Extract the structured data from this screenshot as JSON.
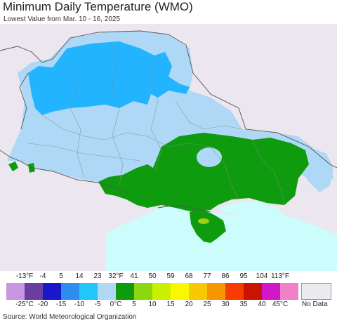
{
  "header": {
    "title": "Minimum Daily Temperature (WMO)",
    "subtitle": "Lowest Value from Mar. 10 - 16, 2025"
  },
  "map": {
    "colors": {
      "background_land": "#ece6ee",
      "sea": "#ccfcfc",
      "zone_minus10_to_minus5": "#22b4ff",
      "zone_minus5_to_0": "#aed8f6",
      "zone_0_to_5": "#0e9c0e",
      "zone_5_to_10": "#9ed00e",
      "borders": "#666666"
    }
  },
  "legend": {
    "fahrenheit_labels": [
      "-13°F",
      "-4",
      "5",
      "14",
      "23",
      "32°F",
      "41",
      "50",
      "59",
      "68",
      "77",
      "86",
      "95",
      "104",
      "113°F"
    ],
    "celsius_labels": [
      "-25°C",
      "-20",
      "-15",
      "-10",
      "-5",
      "0°C",
      "5",
      "10",
      "15",
      "20",
      "25",
      "30",
      "35",
      "40",
      "45°C"
    ],
    "swatch_colors": [
      "#c896e0",
      "#6a3ea0",
      "#1818c8",
      "#2c8cf0",
      "#22c6f8",
      "#aed8f6",
      "#0e9c0e",
      "#8cd80e",
      "#c8f000",
      "#f8f800",
      "#f8c800",
      "#f89600",
      "#f83c00",
      "#c81400",
      "#d018c8",
      "#f080c8"
    ],
    "no_data_label": "No Data",
    "no_data_color": "#ececf0"
  },
  "footer": {
    "source": "Source: World Meteorological Organization"
  }
}
